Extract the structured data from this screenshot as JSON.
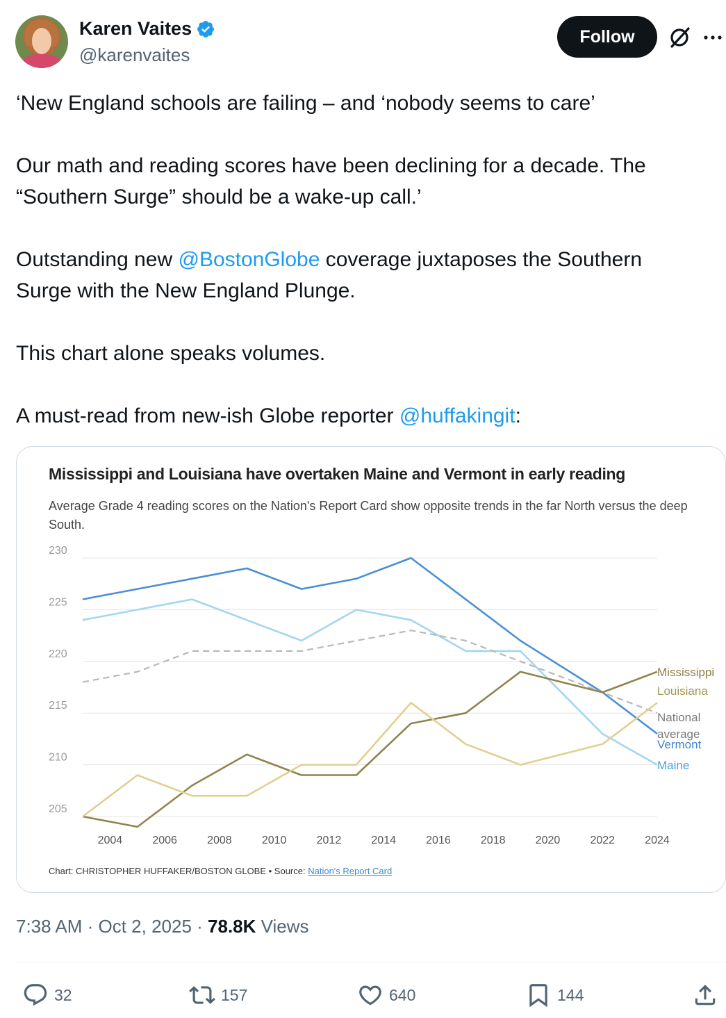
{
  "user": {
    "display_name": "Karen Vaites",
    "handle": "@karenvaites",
    "follow_label": "Follow"
  },
  "tweet": {
    "para1": "‘New England schools are failing – and ‘nobody seems to care’",
    "para2_line1": "Our math and reading scores have been declining for a decade. The",
    "para2_line2": "“Southern Surge” should be a wake-up call.’",
    "para3_prefix": "Outstanding new ",
    "para3_mention": "@BostonGlobe",
    "para3_suffix": " coverage juxtaposes the Southern",
    "para3_line2": "Surge with the New England Plunge.",
    "para4": "This chart alone speaks volumes.",
    "para5_prefix": "A must-read from new-ish Globe reporter ",
    "para5_mention": "@huffakingit",
    "para5_suffix": ":"
  },
  "chart_data": {
    "type": "line",
    "title": "Mississippi and Louisiana have overtaken Maine and Vermont in early reading",
    "subtitle": "Average Grade 4 reading scores on the Nation's Report Card show opposite trends in the far North versus the deep South.",
    "x_ticks": [
      "2004",
      "2006",
      "2008",
      "2010",
      "2012",
      "2014",
      "2016",
      "2018",
      "2020",
      "2022",
      "2024"
    ],
    "y_ticks": [
      "205",
      "210",
      "215",
      "220",
      "225",
      "230"
    ],
    "ylim": [
      205,
      230
    ],
    "xlim": [
      2003,
      2024
    ],
    "grid": true,
    "series": [
      {
        "name": "Vermont",
        "color": "#4a8fd6",
        "dashed": false,
        "x": [
          2003,
          2005,
          2007,
          2009,
          2011,
          2013,
          2015,
          2019,
          2022,
          2024
        ],
        "y": [
          226,
          227,
          228,
          229,
          227,
          228,
          230,
          222,
          217,
          213
        ]
      },
      {
        "name": "Maine",
        "color": "#a3d6f0",
        "dashed": false,
        "x": [
          2003,
          2005,
          2007,
          2009,
          2011,
          2013,
          2015,
          2017,
          2019,
          2022,
          2024
        ],
        "y": [
          224,
          225,
          226,
          224,
          222,
          225,
          224,
          221,
          221,
          213,
          210
        ]
      },
      {
        "name": "National average",
        "label_line1": "National",
        "label_line2": "average",
        "color": "#b8b8b8",
        "dashed": true,
        "x": [
          2003,
          2005,
          2007,
          2009,
          2011,
          2013,
          2015,
          2017,
          2019,
          2022,
          2024
        ],
        "y": [
          218,
          219,
          221,
          221,
          221,
          222,
          223,
          222,
          220,
          217,
          215
        ]
      },
      {
        "name": "Mississippi",
        "color": "#8f8450",
        "dashed": false,
        "x": [
          2003,
          2005,
          2007,
          2009,
          2011,
          2013,
          2015,
          2017,
          2019,
          2022,
          2024
        ],
        "y": [
          205,
          204,
          208,
          211,
          209,
          209,
          214,
          215,
          219,
          217,
          219
        ]
      },
      {
        "name": "Louisiana",
        "color": "#e2cf8f",
        "dashed": false,
        "x": [
          2003,
          2005,
          2007,
          2009,
          2011,
          2013,
          2015,
          2017,
          2019,
          2022,
          2024
        ],
        "y": [
          205,
          209,
          207,
          207,
          210,
          210,
          216,
          212,
          210,
          212,
          216
        ]
      }
    ],
    "credit_prefix": "Chart: CHRISTOPHER HUFFAKER/BOSTON GLOBE  •  Source: ",
    "credit_link": "Nation's Report Card"
  },
  "meta": {
    "time": "7:38 AM · Oct 2, 2025 · ",
    "views_count": "78.8K",
    "views_label": " Views"
  },
  "actions": {
    "replies": "32",
    "reposts": "157",
    "likes": "640",
    "bookmarks": "144"
  }
}
